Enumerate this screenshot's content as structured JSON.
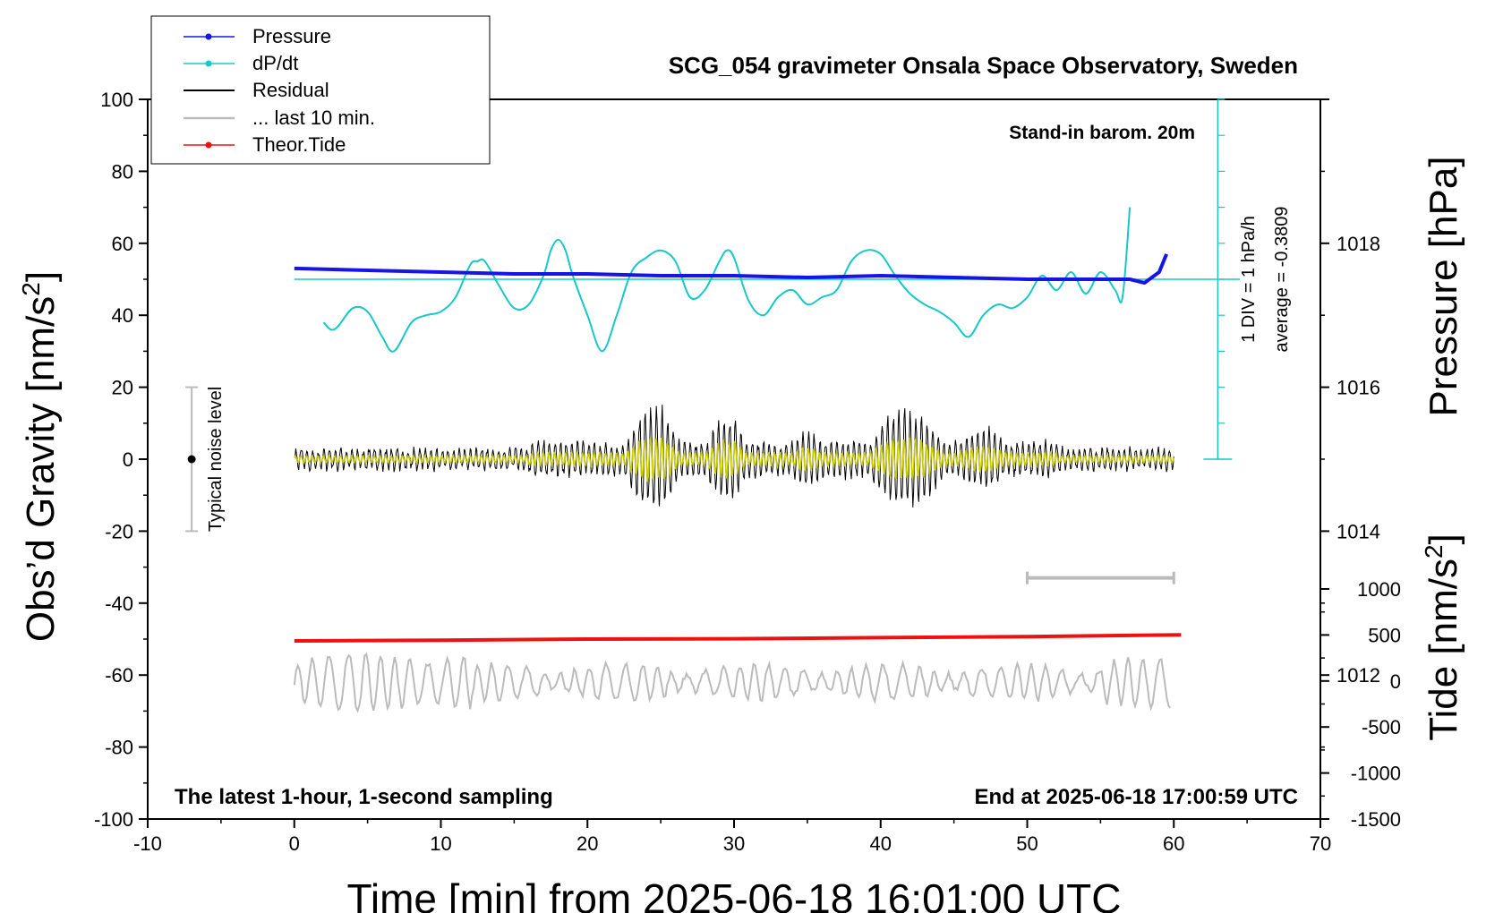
{
  "chart_data": {
    "type": "line",
    "title": "SCG_054 gravimeter Onsala Space Observatory, Sweden",
    "xlabel": "Time [min] from 2025-06-18 16:01:00 UTC",
    "ylabel_main": "Obs’d Gravity [nm/s",
    "ylabel_sup": "2",
    "ylabel_close": "]",
    "ylabel_pressure": "Pressure [hPa]",
    "ylabel_tide": "Tide [nm/s",
    "ylabel_tide_sup": "2",
    "ylabel_tide_close": "]",
    "xlim": [
      -10,
      70
    ],
    "ylim": [
      -100,
      100
    ],
    "x_ticks": [
      -10,
      0,
      10,
      20,
      30,
      40,
      50,
      60,
      70
    ],
    "x_tick_labels": [
      "-10",
      "0",
      "10",
      "20",
      "30",
      "40",
      "50",
      "60",
      "70"
    ],
    "y_ticks": [
      -100,
      -80,
      -60,
      -40,
      -20,
      0,
      20,
      40,
      60,
      80,
      100
    ],
    "y_tick_labels": [
      "-100",
      "-80",
      "-60",
      "-40",
      "-20",
      "0",
      "20",
      "40",
      "60",
      "80",
      "100"
    ],
    "pressure_axis": {
      "range": [
        1010,
        1020
      ],
      "ticks": [
        1012,
        1014,
        1016,
        1018
      ],
      "tick_labels": [
        "1012",
        "1014",
        "1016",
        "1018"
      ]
    },
    "tide_axis": {
      "range": [
        -1500,
        1000
      ],
      "ticks": [
        1000,
        500,
        0,
        -500,
        -1000,
        -1500
      ],
      "tick_labels": [
        "1000",
        "500",
        "0",
        "-500",
        "-1000",
        "-1500"
      ]
    },
    "annotations": {
      "barometer": "Stand-in barom. 20m",
      "latest": "The latest 1-hour, 1-second sampling",
      "end": "End at 2025-06-18 17:00:59 UTC",
      "div": "1 DIV = 1 hPa/h",
      "average": "average = -0.3809",
      "noise": "Typical noise level"
    },
    "legend": {
      "placement": "top-left",
      "entries": [
        "Pressure",
        "dP/dt",
        "Residual",
        "... last 10 min.",
        "Theor.Tide"
      ]
    },
    "colors": {
      "pressure": "#1515e6",
      "dpdt": "#18c8c8",
      "residual": "#000000",
      "residual_smooth": "#c8c800",
      "last10": "#bbbbbb",
      "tide": "#ee1111",
      "noise": "#bbbbbb"
    },
    "noise_bar": {
      "x": -7,
      "y_low": -20,
      "y_high": 20
    },
    "last10_bar": {
      "x_start": 50,
      "x_end": 60,
      "y": -33
    },
    "dpdt_reference": {
      "zero_level": 50,
      "div_x": 63,
      "div_top": 100,
      "div_bottom": 0
    },
    "series": [
      {
        "name": "Pressure",
        "x": [
          0,
          5,
          10,
          15,
          20,
          25,
          30,
          35,
          40,
          45,
          50,
          55,
          57,
          58,
          59,
          59.5
        ],
        "y": [
          53,
          52.5,
          52,
          51.5,
          51.5,
          51,
          51,
          50.5,
          51,
          50.5,
          50,
          50,
          50,
          49,
          52,
          57
        ]
      },
      {
        "name": "dP/dt",
        "x": [
          2,
          2.5,
          3,
          4,
          5,
          6,
          6.8,
          8,
          9,
          10,
          11,
          12,
          12.5,
          13,
          14,
          15,
          16,
          17,
          17.5,
          18,
          18.5,
          19,
          20,
          21,
          22,
          23,
          24,
          25,
          26,
          27,
          28,
          29,
          29.5,
          30,
          31,
          32,
          33,
          34,
          35,
          36,
          37,
          38,
          39,
          40,
          41,
          42,
          43,
          44,
          45,
          46,
          47,
          48,
          49,
          50,
          51,
          52,
          53,
          54,
          55,
          56,
          56.5,
          57
        ],
        "y": [
          38,
          36,
          37,
          42,
          41,
          34,
          30,
          38,
          40,
          41,
          45,
          54,
          55,
          55,
          48,
          42,
          43,
          51,
          58,
          61,
          58,
          51,
          40,
          30,
          40,
          52,
          56,
          58,
          55,
          45,
          47,
          55,
          58,
          56,
          44,
          40,
          45,
          47,
          43,
          45,
          47,
          55,
          58,
          57,
          51,
          46,
          43,
          41,
          38,
          34,
          40,
          43,
          42,
          45,
          51,
          47,
          52,
          46,
          52,
          47,
          45,
          70
        ]
      },
      {
        "name": "Theor.Tide",
        "x": [
          0,
          10,
          20,
          30,
          40,
          50,
          60.5
        ],
        "y": [
          -50.5,
          -50.3,
          -50,
          -49.9,
          -49.6,
          -49.3,
          -48.8
        ]
      }
    ]
  }
}
